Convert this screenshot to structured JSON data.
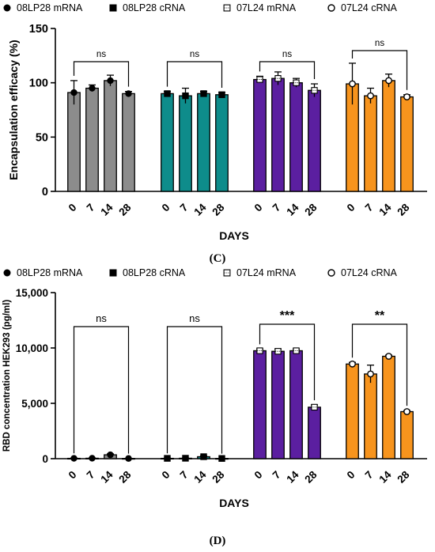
{
  "chart_data": [
    {
      "type": "bar",
      "panel_label": "(C)",
      "ylabel": "Encapsulation efficacy (%)",
      "xlabel": "DAYS",
      "ylim": [
        0,
        150
      ],
      "yticks": [
        0,
        50,
        100,
        150
      ],
      "ytick_labels": [
        "0",
        "50",
        "100",
        "150"
      ],
      "categories": [
        "0",
        "7",
        "14",
        "28"
      ],
      "legend": "top",
      "series": [
        {
          "name": "08LP28 mRNA",
          "marker": "filled-circle",
          "color": "#8c8c8c",
          "values": [
            91,
            95,
            102,
            90
          ],
          "errors": [
            11,
            3,
            5,
            2
          ],
          "significance": "ns",
          "sig_bold": false
        },
        {
          "name": "08LP28 cRNA",
          "marker": "filled-square",
          "color": "#0e8c8b",
          "values": [
            90,
            88,
            90,
            89
          ],
          "errors": [
            2,
            7,
            2,
            2
          ],
          "significance": "ns",
          "sig_bold": false
        },
        {
          "name": "07L24 mRNA",
          "marker": "dotted-square",
          "color": "#5b1fa0",
          "values": [
            103,
            104,
            100,
            93
          ],
          "errors": [
            3,
            6,
            4,
            6
          ],
          "significance": "ns",
          "sig_bold": false
        },
        {
          "name": "07L24 cRNA",
          "marker": "open-circle",
          "color": "#f7941d",
          "values": [
            99,
            88,
            102,
            87
          ],
          "errors": [
            19,
            7,
            6,
            2
          ],
          "significance": "ns",
          "sig_bold": false
        }
      ]
    },
    {
      "type": "bar",
      "panel_label": "(D)",
      "ylabel": "RBD concentration HEK293 (pg/ml)",
      "xlabel": "DAYS",
      "ylim": [
        0,
        15000
      ],
      "yticks": [
        0,
        5000,
        10000,
        15000
      ],
      "ytick_labels": [
        "0",
        "5,000",
        "10,000",
        "15,000"
      ],
      "categories": [
        "0",
        "7",
        "14",
        "28"
      ],
      "legend": "top",
      "series": [
        {
          "name": "08LP28 mRNA",
          "marker": "filled-circle",
          "color": "#8c8c8c",
          "values": [
            30,
            40,
            350,
            20
          ],
          "errors": [
            20,
            20,
            80,
            10
          ],
          "significance": "ns",
          "sig_bold": false
        },
        {
          "name": "08LP28 cRNA",
          "marker": "filled-square",
          "color": "#0e8c8b",
          "values": [
            30,
            40,
            180,
            20
          ],
          "errors": [
            20,
            20,
            80,
            10
          ],
          "significance": "ns",
          "sig_bold": false
        },
        {
          "name": "07L24 mRNA",
          "marker": "dotted-square",
          "color": "#5b1fa0",
          "values": [
            9750,
            9700,
            9750,
            4650
          ],
          "errors": [
            150,
            200,
            150,
            200
          ],
          "significance": "***",
          "sig_bold": true
        },
        {
          "name": "07L24 cRNA",
          "marker": "open-circle",
          "color": "#f7941d",
          "values": [
            8550,
            7650,
            9250,
            4250
          ],
          "errors": [
            150,
            800,
            100,
            100
          ],
          "significance": "**",
          "sig_bold": true
        }
      ]
    }
  ]
}
